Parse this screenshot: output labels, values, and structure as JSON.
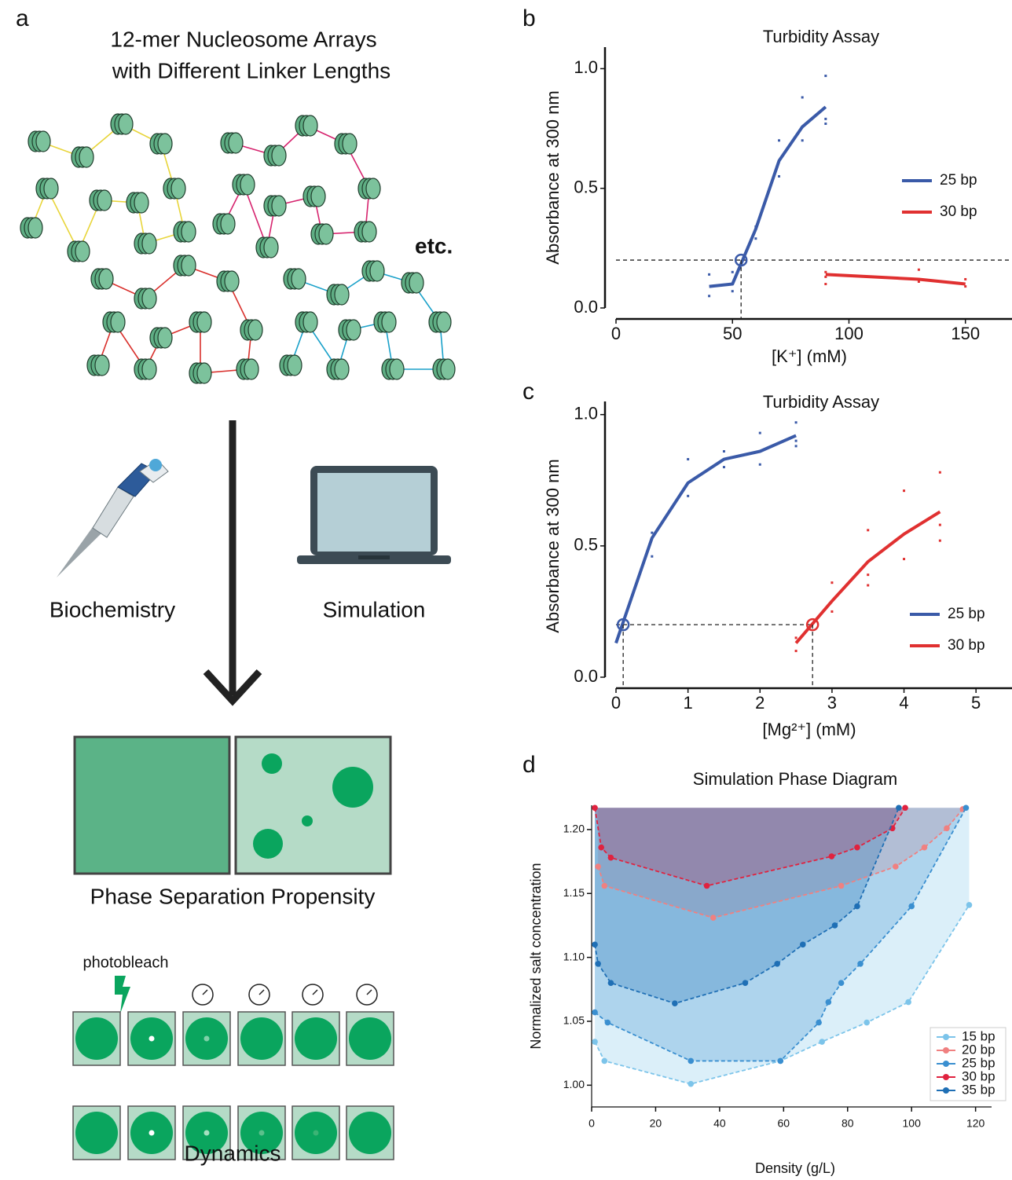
{
  "diagram": {
    "panel": "a",
    "title": [
      "12-mer Nucleosome Arrays",
      "with Different Linker Lengths"
    ],
    "etc": "etc.",
    "methods": [
      "Biochemistry",
      "Simulation"
    ],
    "phase_label": "Phase Separation Propensity",
    "photobleach": "photobleach",
    "dynamics_label": "Dynamics"
  },
  "chart_data": [
    {
      "type": "line",
      "panel": "b",
      "title": "Turbidity Assay",
      "xlabel": "[K⁺] (mM)",
      "ylabel": "Absorbance at 300 nm",
      "xlim": [
        0,
        170
      ],
      "ylim": [
        0,
        1.09
      ],
      "xticks": [
        0,
        50,
        100,
        150
      ],
      "yticks": [
        {
          "value": 0,
          "label": "0.0"
        },
        {
          "value": 0.5,
          "label": "0.5"
        },
        {
          "value": 1,
          "label": "1.0"
        }
      ],
      "legend": "right",
      "threshold": 0.2,
      "markers": [
        {
          "x": 53.7,
          "color": "#3a5aa8"
        }
      ],
      "series": [
        {
          "name": "25 bp",
          "color": "#3a5aa8",
          "x": [
            40,
            50,
            60,
            70,
            80,
            90
          ],
          "values": [
            0.09,
            0.1,
            0.33,
            0.615,
            0.757,
            0.84
          ],
          "replicates": {
            "x": [
              40,
              40,
              50,
              50,
              60,
              60,
              70,
              70,
              80,
              80,
              90,
              90,
              90
            ],
            "y": [
              0.05,
              0.14,
              0.07,
              0.15,
              0.29,
              0.34,
              0.55,
              0.7,
              0.7,
              0.88,
              0.77,
              0.79,
              0.97
            ]
          }
        },
        {
          "name": "30 bp",
          "color": "#e03030",
          "x": [
            90,
            110,
            130,
            150
          ],
          "values": [
            0.14,
            0.13,
            0.12,
            0.1
          ],
          "replicates": {
            "x": [
              90,
              90,
              90,
              110,
              130,
              130,
              150,
              150
            ],
            "y": [
              0.1,
              0.15,
              0.13,
              0.13,
              0.11,
              0.16,
              0.09,
              0.12
            ]
          }
        }
      ]
    },
    {
      "type": "line",
      "panel": "c",
      "title": "Turbidity Assay",
      "xlabel": "[Mg²⁺] (mM)",
      "ylabel": "Absorbance at 300 nm",
      "xlim": [
        0,
        5.5
      ],
      "ylim": [
        0,
        1.05
      ],
      "xticks": [
        0,
        1,
        2,
        3,
        4,
        5
      ],
      "yticks": [
        {
          "value": 0,
          "label": "0.0"
        },
        {
          "value": 0.5,
          "label": "0.5"
        },
        {
          "value": 1,
          "label": "1.0"
        }
      ],
      "legend": "right",
      "threshold": 0.2,
      "markers": [
        {
          "x": 0.1,
          "color": "#3a5aa8"
        },
        {
          "x": 2.73,
          "color": "#e03030"
        }
      ],
      "series": [
        {
          "name": "25 bp",
          "color": "#3a5aa8",
          "x": [
            0,
            0.5,
            1,
            1.5,
            2,
            2.5
          ],
          "values": [
            0.13,
            0.53,
            0.74,
            0.83,
            0.86,
            0.92
          ],
          "replicates": {
            "x": [
              0.5,
              0.5,
              1,
              1,
              1.5,
              1.5,
              2,
              2,
              2.5,
              2.5,
              2.5
            ],
            "y": [
              0.46,
              0.55,
              0.69,
              0.83,
              0.8,
              0.86,
              0.81,
              0.93,
              0.88,
              0.9,
              0.97
            ]
          }
        },
        {
          "name": "30 bp",
          "color": "#e03030",
          "x": [
            2.5,
            3,
            3.5,
            4,
            4.5
          ],
          "values": [
            0.13,
            0.29,
            0.44,
            0.545,
            0.63
          ],
          "replicates": {
            "x": [
              2.5,
              2.5,
              3,
              3,
              3.5,
              3.5,
              3.5,
              4,
              4,
              4.5,
              4.5,
              4.5
            ],
            "y": [
              0.1,
              0.15,
              0.25,
              0.36,
              0.35,
              0.39,
              0.56,
              0.45,
              0.71,
              0.52,
              0.58,
              0.78
            ]
          }
        }
      ]
    },
    {
      "type": "scatter",
      "panel": "d",
      "title": "Simulation Phase Diagram",
      "xlabel": "Density (g/L)",
      "ylabel": "Normalized salt concentration",
      "xlim": [
        0,
        125
      ],
      "ylim": [
        0.983,
        1.219
      ],
      "xticks": [
        0,
        20,
        40,
        60,
        80,
        100,
        120
      ],
      "yticks": [
        {
          "value": 1,
          "label": "1.00"
        },
        {
          "value": 1.05,
          "label": "1.05"
        },
        {
          "value": 1.1,
          "label": "1.10"
        },
        {
          "value": 1.15,
          "label": "1.15"
        },
        {
          "value": 1.2,
          "label": "1.20"
        }
      ],
      "legend": "lower right",
      "series": [
        {
          "name": "15 bp",
          "color": "#7cc4ea",
          "x": [
            1,
            4,
            31,
            59,
            72,
            86,
            99,
            118
          ],
          "values": [
            1.034,
            1.019,
            1.001,
            1.019,
            1.034,
            1.049,
            1.065,
            1.141
          ]
        },
        {
          "name": "20 bp",
          "color": "#f08080",
          "x": [
            2,
            4,
            38,
            78,
            95,
            104,
            111,
            116
          ],
          "values": [
            1.171,
            1.156,
            1.131,
            1.156,
            1.171,
            1.186,
            1.201,
            1.216
          ]
        },
        {
          "name": "25 bp",
          "color": "#3a8fd0",
          "x": [
            1,
            5,
            31,
            59,
            71,
            74,
            78,
            84,
            100,
            117
          ],
          "values": [
            1.057,
            1.049,
            1.019,
            1.019,
            1.049,
            1.065,
            1.08,
            1.095,
            1.14,
            1.217
          ]
        },
        {
          "name": "30 bp",
          "color": "#e0223f",
          "x": [
            1,
            3,
            6,
            36,
            75,
            83,
            94,
            98
          ],
          "values": [
            1.217,
            1.186,
            1.178,
            1.156,
            1.179,
            1.186,
            1.201,
            1.217
          ]
        },
        {
          "name": "35 bp",
          "color": "#1f6fb5",
          "x": [
            1,
            2,
            6,
            26,
            48,
            58,
            66,
            76,
            83,
            96
          ],
          "values": [
            1.11,
            1.095,
            1.08,
            1.064,
            1.08,
            1.095,
            1.11,
            1.125,
            1.14,
            1.217
          ]
        }
      ]
    }
  ]
}
